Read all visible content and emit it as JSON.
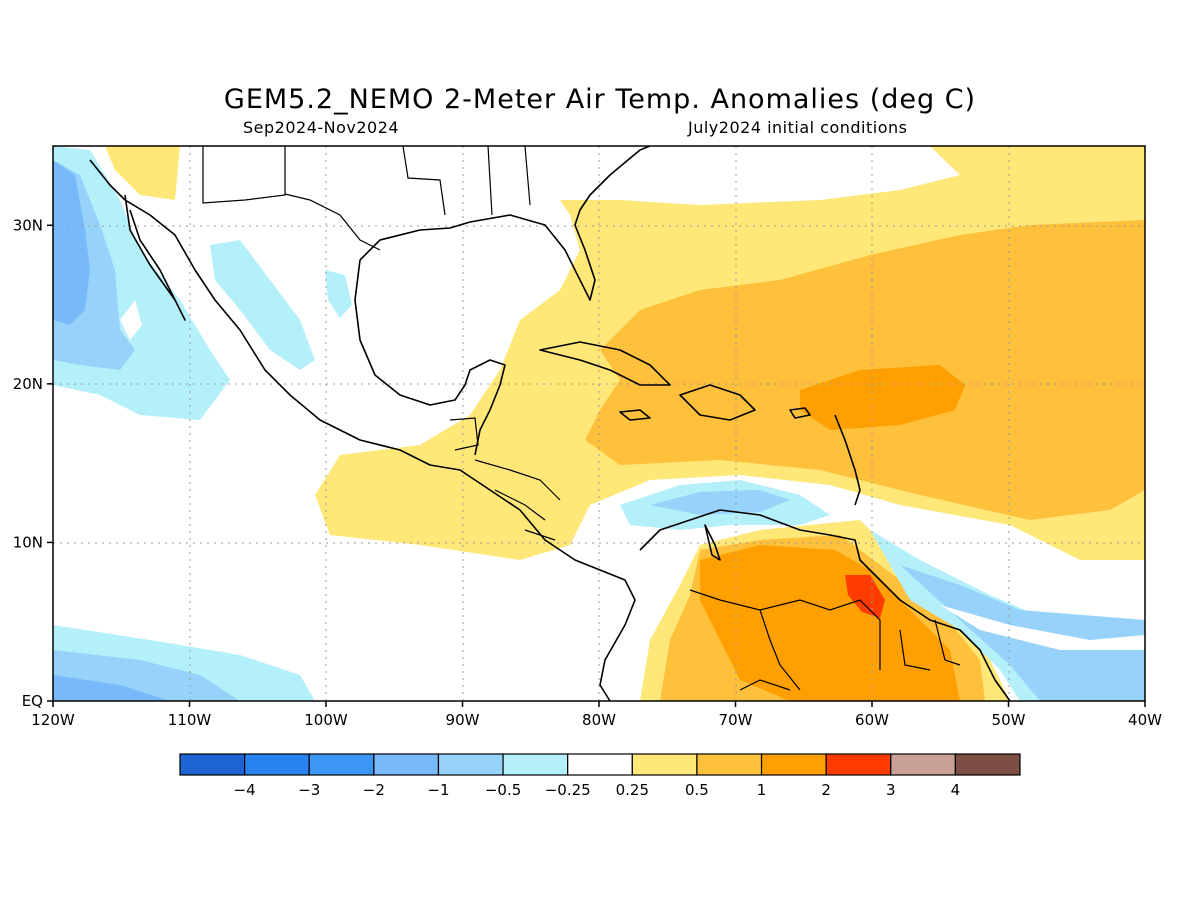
{
  "title": "GEM5.2_NEMO 2-Meter Air Temp. Anomalies (deg C)",
  "subtitle_left": "Sep2024-Nov2024",
  "subtitle_right": "July2024 initial conditions",
  "map": {
    "lon_range": [
      -120,
      -40
    ],
    "lat_range": [
      0,
      35
    ],
    "x_ticks": [
      "120W",
      "110W",
      "100W",
      "90W",
      "80W",
      "70W",
      "60W",
      "50W",
      "40W"
    ],
    "y_ticks": [
      "EQ",
      "10N",
      "20N",
      "30N"
    ],
    "grid": "dotted"
  },
  "colorbar": {
    "colors": [
      "#1e64d2",
      "#2882f0",
      "#3c96f5",
      "#78b9fa",
      "#96d2fa",
      "#b4f0fa",
      "#ffffff",
      "#ffe878",
      "#ffc03c",
      "#ffa000",
      "#ff3c00",
      "#c8a096",
      "#7d4e44"
    ],
    "labels": [
      "-4",
      "-3",
      "-2",
      "-1",
      "-0.5",
      "-0.25",
      "0.25",
      "0.5",
      "1",
      "2",
      "3",
      "4"
    ]
  }
}
